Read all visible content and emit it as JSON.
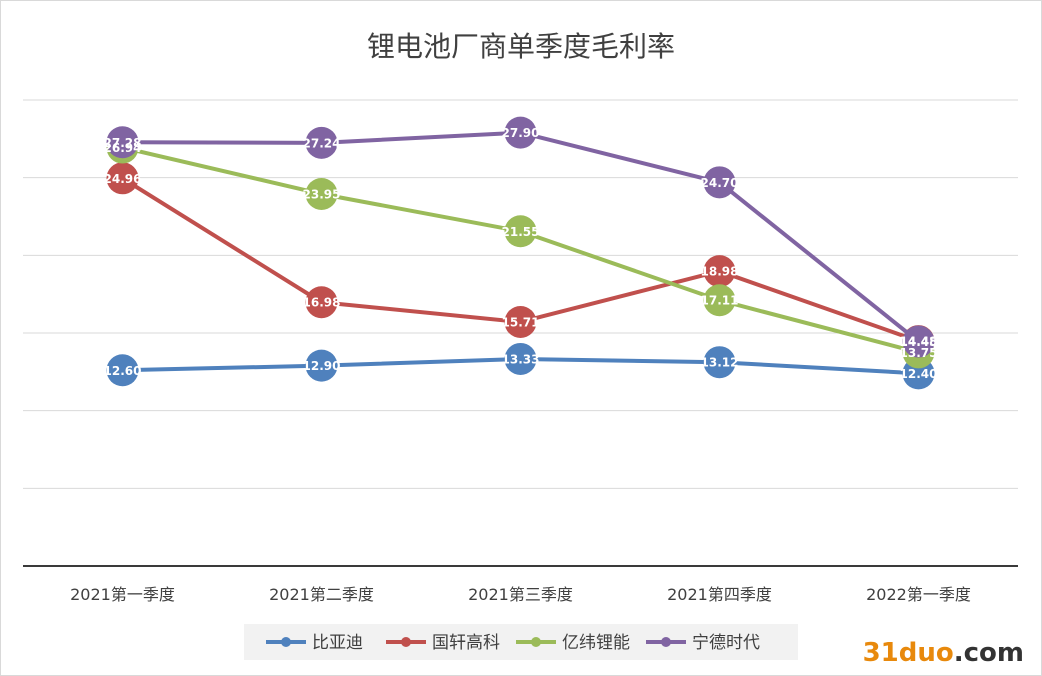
{
  "chart_data": {
    "type": "line",
    "title": "锂电池厂商单季度毛利率",
    "categories": [
      "2021第一季度",
      "2021第二季度",
      "2021第三季度",
      "2021第四季度",
      "2022第一季度"
    ],
    "ylim": [
      0,
      30
    ],
    "grid": true,
    "legend": "bottom",
    "series": [
      {
        "name": "比亚迪",
        "color": "#4f81bd",
        "values": [
          12.6,
          12.9,
          13.33,
          13.12,
          12.4
        ],
        "labels": [
          "12.60",
          "12.90",
          "13.33",
          "13.12",
          "12.40"
        ]
      },
      {
        "name": "国轩高科",
        "color": "#c0504d",
        "values": [
          24.96,
          16.98,
          15.71,
          18.98,
          14.48
        ],
        "labels": [
          "24.96",
          "16.98",
          "15.71",
          "18.98",
          "14.48"
        ]
      },
      {
        "name": "亿纬锂能",
        "color": "#9bbb59",
        "values": [
          26.94,
          23.95,
          21.55,
          17.11,
          13.75
        ],
        "labels": [
          "26.94",
          "23.95",
          "21.55",
          "17.11",
          "13.75"
        ]
      },
      {
        "name": "宁德时代",
        "color": "#8064a2",
        "values": [
          27.28,
          27.24,
          27.9,
          24.7,
          14.45
        ],
        "labels": [
          "27.28",
          "27.24",
          "27.90",
          "24.70",
          "14.45"
        ]
      }
    ]
  },
  "watermark": {
    "number": "31duo",
    "suffix": ".com"
  }
}
